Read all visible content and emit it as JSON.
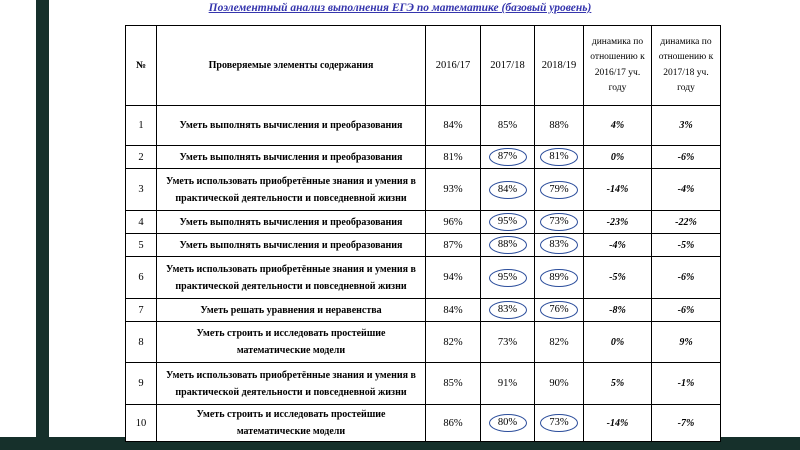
{
  "title": "Поэлементный анализ выполнения ЕГЭ по математике (базовый уровень)",
  "colors": {
    "title_text": "#3535ad",
    "circle_stroke": "#2b4d9b",
    "accent_bar": "#16302b",
    "table_border": "#000000"
  },
  "table": {
    "headers": {
      "num": "№",
      "content": "Проверяемые элементы содержания",
      "y_2016_17": "2016/17",
      "y_2017_18": "2017/18",
      "y_2018_19": "2018/19",
      "dyn_2016_17": "динамика по отношению к 2016/17 уч. году",
      "dyn_2017_18": "динамика по отношению к 2017/18 уч. году"
    },
    "rows": [
      {
        "num": "1",
        "content": "Уметь выполнять вычисления и преобразования",
        "y_2016_17": "84%",
        "y_2017_18": "85%",
        "y_2018_19": "88%",
        "dyn_2016_17": "4%",
        "dyn_2017_18": "3%",
        "circled_2017_18": false,
        "circled_2018_19": false
      },
      {
        "num": "2",
        "content": "Уметь выполнять вычисления и преобразования",
        "y_2016_17": "81%",
        "y_2017_18": "87%",
        "y_2018_19": "81%",
        "dyn_2016_17": "0%",
        "dyn_2017_18": "-6%",
        "circled_2017_18": true,
        "circled_2018_19": true
      },
      {
        "num": "3",
        "content": "Уметь использовать приобретённые знания и умения в практической деятельности и повседневной жизни",
        "y_2016_17": "93%",
        "y_2017_18": "84%",
        "y_2018_19": "79%",
        "dyn_2016_17": "-14%",
        "dyn_2017_18": "-4%",
        "circled_2017_18": true,
        "circled_2018_19": true
      },
      {
        "num": "4",
        "content": "Уметь выполнять вычисления и преобразования",
        "y_2016_17": "96%",
        "y_2017_18": "95%",
        "y_2018_19": "73%",
        "dyn_2016_17": "-23%",
        "dyn_2017_18": "-22%",
        "circled_2017_18": true,
        "circled_2018_19": true
      },
      {
        "num": "5",
        "content": "Уметь выполнять вычисления и преобразования",
        "y_2016_17": "87%",
        "y_2017_18": "88%",
        "y_2018_19": "83%",
        "dyn_2016_17": "-4%",
        "dyn_2017_18": "-5%",
        "circled_2017_18": true,
        "circled_2018_19": true
      },
      {
        "num": "6",
        "content": "Уметь использовать приобретённые знания и умения в практической деятельности и повседневной жизни",
        "y_2016_17": "94%",
        "y_2017_18": "95%",
        "y_2018_19": "89%",
        "dyn_2016_17": "-5%",
        "dyn_2017_18": "-6%",
        "circled_2017_18": true,
        "circled_2018_19": true
      },
      {
        "num": "7",
        "content": "Уметь решать уравнения и неравенства",
        "y_2016_17": "84%",
        "y_2017_18": "83%",
        "y_2018_19": "76%",
        "dyn_2016_17": "-8%",
        "dyn_2017_18": "-6%",
        "circled_2017_18": true,
        "circled_2018_19": true
      },
      {
        "num": "8",
        "content": "Уметь строить и исследовать простейшие математические модели",
        "y_2016_17": "82%",
        "y_2017_18": "73%",
        "y_2018_19": "82%",
        "dyn_2016_17": "0%",
        "dyn_2017_18": "9%",
        "circled_2017_18": false,
        "circled_2018_19": false
      },
      {
        "num": "9",
        "content": "Уметь использовать приобретённые знания и умения в практической деятельности и повседневной жизни",
        "y_2016_17": "85%",
        "y_2017_18": "91%",
        "y_2018_19": "90%",
        "dyn_2016_17": "5%",
        "dyn_2017_18": "-1%",
        "circled_2017_18": false,
        "circled_2018_19": false
      },
      {
        "num": "10",
        "content": "Уметь строить и исследовать простейшие математические модели",
        "y_2016_17": "86%",
        "y_2017_18": "80%",
        "y_2018_19": "73%",
        "dyn_2016_17": "-14%",
        "dyn_2017_18": "-7%",
        "circled_2017_18": true,
        "circled_2018_19": true
      }
    ]
  }
}
